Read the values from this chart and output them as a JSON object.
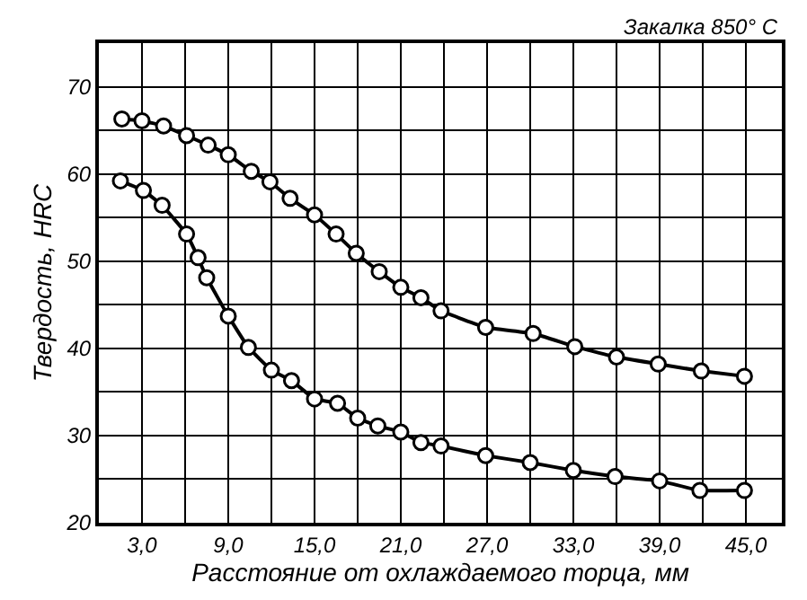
{
  "chart_data": {
    "type": "line",
    "xlabel": "Расстояние от охлаждаемого торца, мм",
    "ylabel": "Твердость, HRC",
    "annotations": [
      "Закалка 850° C"
    ],
    "xlim": [
      0,
      47.5
    ],
    "ylim": [
      20,
      75
    ],
    "xticks": [
      {
        "value": 3,
        "label": "3,0"
      },
      {
        "value": 6,
        "label": null
      },
      {
        "value": 9,
        "label": "9,0"
      },
      {
        "value": 12,
        "label": null
      },
      {
        "value": 15,
        "label": "15,0"
      },
      {
        "value": 18,
        "label": null
      },
      {
        "value": 21,
        "label": "21,0"
      },
      {
        "value": 24,
        "label": null
      },
      {
        "value": 27,
        "label": "27,0"
      },
      {
        "value": 30,
        "label": null
      },
      {
        "value": 33,
        "label": "33,0"
      },
      {
        "value": 36,
        "label": null
      },
      {
        "value": 39,
        "label": "39,0"
      },
      {
        "value": 42,
        "label": null
      },
      {
        "value": 45,
        "label": "45,0"
      }
    ],
    "yticks": [
      20,
      {
        "value": 25,
        "label": null
      },
      30,
      {
        "value": 35,
        "label": null
      },
      40,
      {
        "value": 45,
        "label": null
      },
      50,
      {
        "value": 55,
        "label": null
      },
      60,
      {
        "value": 65,
        "label": null
      },
      70
    ],
    "grid": true,
    "marker": "circle",
    "line_style": "solid",
    "series": [
      {
        "color": "#000000",
        "x": [
          1.6,
          3.0,
          4.5,
          6.1,
          7.6,
          9.0,
          10.6,
          11.9,
          13.3,
          15.0,
          16.5,
          17.9,
          19.5,
          21.0,
          22.4,
          23.8,
          26.9,
          30.2,
          33.1,
          36.0,
          38.9,
          41.9,
          44.9
        ],
        "values": [
          66.3,
          66.1,
          65.5,
          64.4,
          63.3,
          62.2,
          60.3,
          59.1,
          57.2,
          55.3,
          53.1,
          50.9,
          48.8,
          47.0,
          45.8,
          44.3,
          42.4,
          41.7,
          40.2,
          39.0,
          38.2,
          37.4,
          36.8
        ]
      },
      {
        "color": "#000000",
        "x": [
          1.5,
          3.1,
          4.4,
          6.1,
          6.9,
          7.5,
          9.0,
          10.4,
          12.0,
          13.4,
          15.0,
          16.6,
          18.0,
          19.4,
          21.0,
          22.4,
          23.8,
          26.9,
          30.0,
          33.0,
          35.9,
          39.0,
          41.8,
          44.9
        ],
        "values": [
          59.2,
          58.1,
          56.4,
          53.1,
          50.4,
          48.1,
          43.7,
          40.1,
          37.5,
          36.3,
          34.2,
          33.7,
          32.0,
          31.1,
          30.4,
          29.2,
          28.8,
          27.7,
          26.9,
          26.0,
          25.3,
          24.8,
          23.7,
          23.7
        ]
      }
    ]
  }
}
